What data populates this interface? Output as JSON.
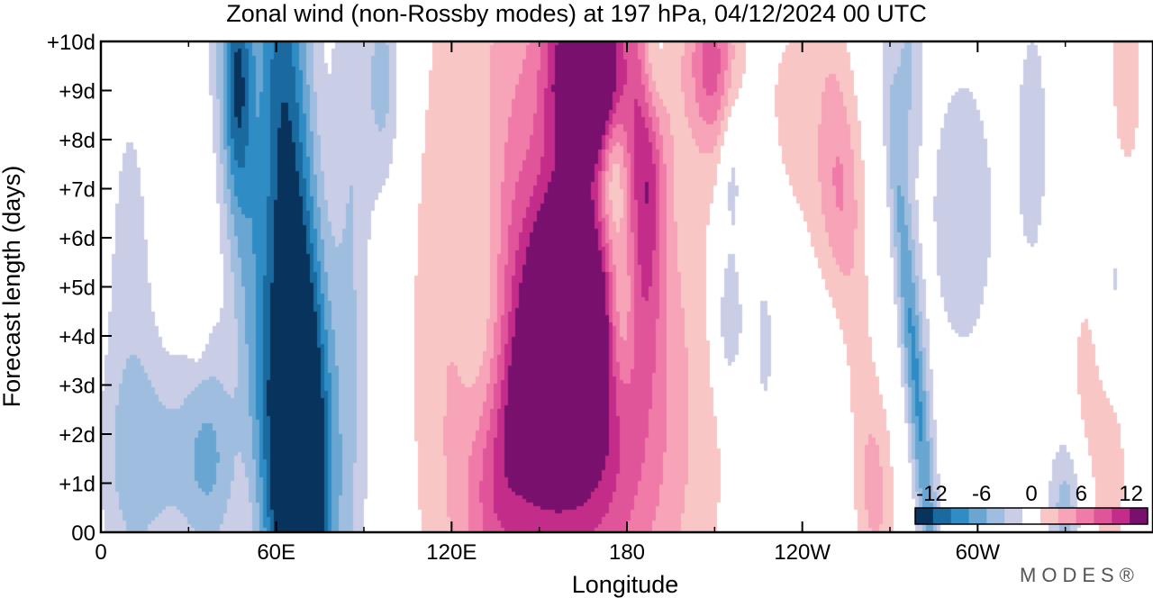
{
  "chart_data": {
    "type": "heatmap",
    "title": "Zonal wind (non-Rossby modes) at 197 hPa,  04/12/2024  00 UTC",
    "xlabel": "Longitude",
    "ylabel": "Forecast length (days)",
    "x_ticks": [
      {
        "lon": 0,
        "label": "0"
      },
      {
        "lon": 60,
        "label": "60E"
      },
      {
        "lon": 120,
        "label": "120E"
      },
      {
        "lon": 180,
        "label": "180"
      },
      {
        "lon": 240,
        "label": "120W"
      },
      {
        "lon": 300,
        "label": "60W"
      }
    ],
    "x_minor_ticks": [
      30,
      90,
      150,
      210,
      270,
      330
    ],
    "xlim": [
      0,
      360
    ],
    "y_ticks": [
      {
        "day": 0,
        "label": "00"
      },
      {
        "day": 1,
        "label": "+1d"
      },
      {
        "day": 2,
        "label": "+2d"
      },
      {
        "day": 3,
        "label": "+3d"
      },
      {
        "day": 4,
        "label": "+4d"
      },
      {
        "day": 5,
        "label": "+5d"
      },
      {
        "day": 6,
        "label": "+6d"
      },
      {
        "day": 7,
        "label": "+7d"
      },
      {
        "day": 8,
        "label": "+8d"
      },
      {
        "day": 9,
        "label": "+9d"
      },
      {
        "day": 10,
        "label": "+10d"
      }
    ],
    "ylim": [
      0,
      10
    ],
    "colorbar": {
      "levels": [
        -14,
        -12,
        -10,
        -8,
        -6,
        -4,
        -2,
        2,
        4,
        6,
        8,
        10,
        12,
        14
      ],
      "colors": [
        "#08335c",
        "#1a6aa0",
        "#2f8cc4",
        "#6aa6d2",
        "#9fbddf",
        "#c9cde6",
        "#ffffff",
        "#f9c6c6",
        "#f7a3b8",
        "#f07aa8",
        "#e0559a",
        "#c42c8a",
        "#7a106e"
      ],
      "tick_labels": [
        {
          "value": -12,
          "label": "-12"
        },
        {
          "value": -6,
          "label": "-6"
        },
        {
          "value": 0,
          "label": "0"
        },
        {
          "value": 6,
          "label": "6"
        },
        {
          "value": 12,
          "label": "12"
        }
      ],
      "placement": "bottom-right"
    },
    "features": [
      {
        "lon": 10,
        "day": 3.5,
        "value": -3,
        "slope": 0.0,
        "w": 10,
        "h": 7
      },
      {
        "lon": 20,
        "day": 1.5,
        "value": -4,
        "slope": 0.0,
        "w": 18,
        "h": 2
      },
      {
        "lon": 38,
        "day": 1.5,
        "value": -5,
        "slope": 0.0,
        "w": 10,
        "h": 2.5
      },
      {
        "lon": 47,
        "day": 9.3,
        "value": -8,
        "slope": 0.0,
        "w": 5,
        "h": 2.5
      },
      {
        "lon": 65,
        "day": 5,
        "value": -13,
        "slope": -0.6,
        "w": 10,
        "h": 12
      },
      {
        "lon": 70,
        "day": 1.5,
        "value": -10,
        "slope": 0.0,
        "w": 10,
        "h": 4
      },
      {
        "lon": 53,
        "day": 4,
        "value": -5,
        "slope": -1.6,
        "w": 8,
        "h": 12
      },
      {
        "lon": 86,
        "day": 6,
        "value": -4,
        "slope": 0.0,
        "w": 7,
        "h": 13
      },
      {
        "lon": 97,
        "day": 9.2,
        "value": -5,
        "slope": 0.0,
        "w": 6,
        "h": 2.5
      },
      {
        "lon": 159,
        "day": 4.2,
        "value": 12,
        "slope": 0.0,
        "w": 11,
        "h": 2.2
      },
      {
        "lon": 163,
        "day": 3.5,
        "value": 7,
        "slope": 0.0,
        "w": 20,
        "h": 4
      },
      {
        "lon": 150,
        "day": 2.5,
        "value": 7,
        "slope": 0.0,
        "w": 9,
        "h": 1.5
      },
      {
        "lon": 155,
        "day": 6,
        "value": 5,
        "slope": 0.0,
        "w": 40,
        "h": 14
      },
      {
        "lon": 135,
        "day": 3,
        "value": 4,
        "slope": 0.0,
        "w": 22,
        "h": 6
      },
      {
        "lon": 182,
        "day": 2,
        "value": 4,
        "slope": 0.0,
        "w": 30,
        "h": 5
      },
      {
        "lon": 134,
        "day": 1,
        "value": 4,
        "slope": 0.0,
        "w": 10,
        "h": 2
      },
      {
        "lon": 170,
        "day": 9.3,
        "value": 10,
        "slope": 0.0,
        "w": 6,
        "h": 1.8
      },
      {
        "lon": 187,
        "day": 7.4,
        "value": 7,
        "slope": 0.0,
        "w": 6,
        "h": 3
      },
      {
        "lon": 209,
        "day": 9.6,
        "value": 8,
        "slope": 0.0,
        "w": 8,
        "h": 1.8
      },
      {
        "lon": 176,
        "day": 9.5,
        "value": 5,
        "slope": 0.0,
        "w": 16,
        "h": 2
      },
      {
        "lon": 158,
        "day": 9.5,
        "value": 6,
        "slope": 0.0,
        "w": 7,
        "h": 2
      },
      {
        "lon": 178,
        "day": 4.5,
        "value": -6,
        "slope": 0.0,
        "w": 5,
        "h": 2
      },
      {
        "lon": 175,
        "day": 7.3,
        "value": -6,
        "slope": 0.0,
        "w": 5,
        "h": 1.5
      },
      {
        "lon": 189,
        "day": 9.5,
        "value": -6,
        "slope": 0.0,
        "w": 5,
        "h": 1.5
      },
      {
        "lon": 130,
        "day": 4.5,
        "value": -5,
        "slope": 0.0,
        "w": 8,
        "h": 4
      },
      {
        "lon": 215,
        "day": 4.3,
        "value": -5,
        "slope": 0.0,
        "w": 5,
        "h": 1.5
      },
      {
        "lon": 216,
        "day": 7.3,
        "value": -4,
        "slope": 0.0,
        "w": 4,
        "h": 1.5
      },
      {
        "lon": 239,
        "day": 8.5,
        "value": 2.5,
        "slope": 0.0,
        "w": 17,
        "h": 3
      },
      {
        "lon": 257,
        "day": 5.3,
        "value": 2.5,
        "slope": -1.5,
        "w": 7,
        "h": 8
      },
      {
        "lon": 252,
        "day": 6.8,
        "value": 3,
        "slope": 0.0,
        "w": 8,
        "h": 2
      },
      {
        "lon": 33,
        "day": 4.5,
        "value": 2.5,
        "slope": 0.0,
        "w": 3,
        "h": 1
      },
      {
        "lon": 279,
        "day": 3,
        "value": -8,
        "slope": -1.5,
        "w": 4,
        "h": 6
      },
      {
        "lon": 276,
        "day": 9.5,
        "value": -4,
        "slope": 0.0,
        "w": 5,
        "h": 2
      },
      {
        "lon": 295,
        "day": 6.5,
        "value": -3,
        "slope": 0.0,
        "w": 15,
        "h": 4
      },
      {
        "lon": 347,
        "day": 5,
        "value": -3,
        "slope": 0.0,
        "w": 8,
        "h": 2
      },
      {
        "lon": 345,
        "day": 1.5,
        "value": 3,
        "slope": 0.0,
        "w": 8,
        "h": 3
      },
      {
        "lon": 351,
        "day": 9.5,
        "value": 3.5,
        "slope": 0.0,
        "w": 6,
        "h": 3
      },
      {
        "lon": 265,
        "day": 0.8,
        "value": 3,
        "slope": 0.0,
        "w": 7,
        "h": 2
      },
      {
        "lon": 330,
        "day": 0.4,
        "value": -5,
        "slope": 0.0,
        "w": 6,
        "h": 1.5
      },
      {
        "lon": 337,
        "day": 3.5,
        "value": 2.5,
        "slope": 0.0,
        "w": 5,
        "h": 2
      },
      {
        "lon": 227,
        "day": 4,
        "value": -3,
        "slope": 0.0,
        "w": 6,
        "h": 3
      },
      {
        "lon": 319,
        "day": 8,
        "value": -3,
        "slope": 0.0,
        "w": 6,
        "h": 3
      }
    ]
  },
  "brand": "MODES®"
}
